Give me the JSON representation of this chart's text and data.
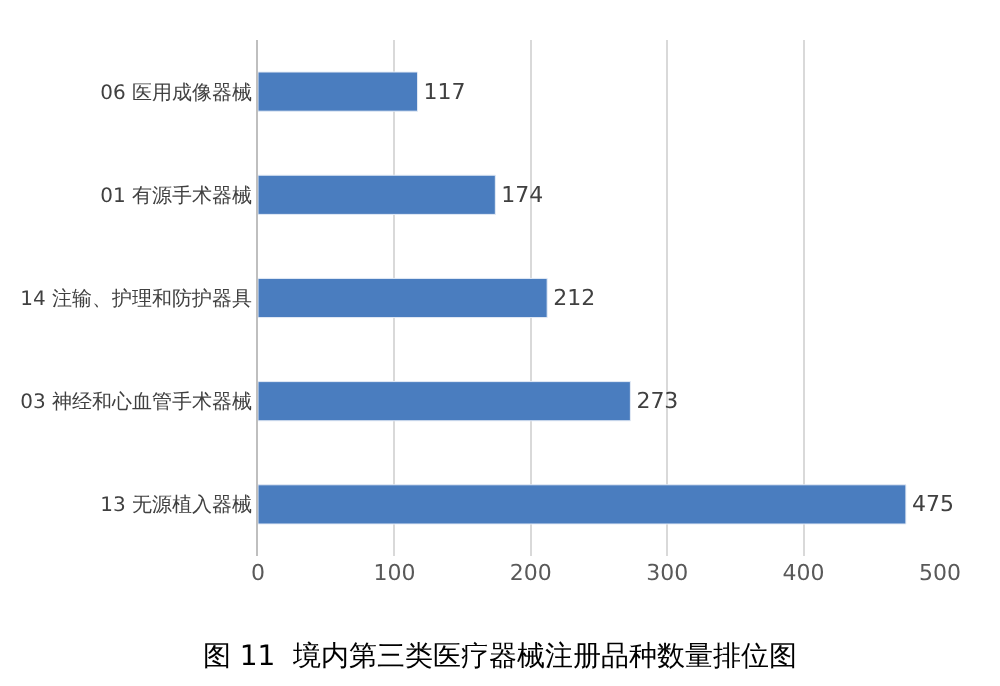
{
  "chart_data": {
    "type": "bar",
    "orientation": "horizontal",
    "title": "图 11  境内第三类医疗器械注册品种数量排位图",
    "categories": [
      "06 医用成像器械",
      "01 有源手术器械",
      "14 注输、护理和防护器具",
      "03 神经和心血管手术器械",
      "13 无源植入器械"
    ],
    "values": [
      117,
      174,
      212,
      273,
      475
    ],
    "color": "#4a7dbf",
    "xlim": [
      0,
      500
    ],
    "xticks": [
      0,
      100,
      200,
      300,
      400,
      500
    ],
    "grid": "x",
    "data_labels": true,
    "legend": false
  }
}
